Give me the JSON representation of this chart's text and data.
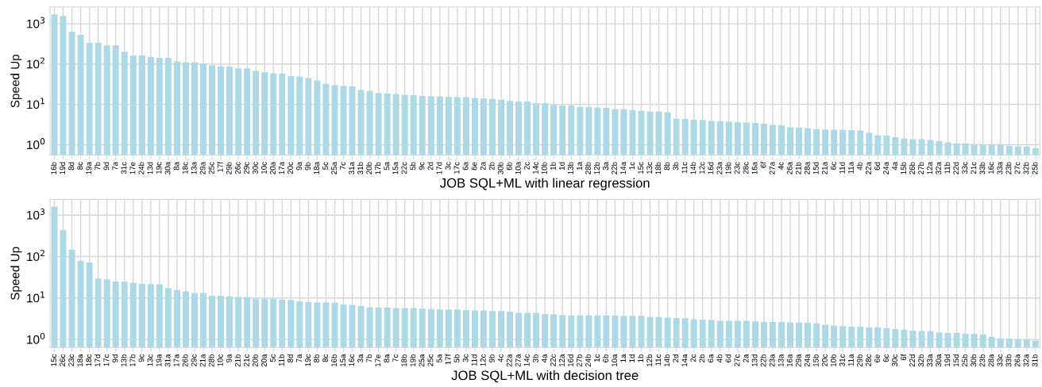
{
  "chart_data": [
    {
      "type": "bar",
      "xlabel": "JOB SQL+ML with linear regression",
      "ylabel": "Speed Up",
      "log": "y",
      "grid": true,
      "color": "#add8e6",
      "ylim": [
        0.55,
        2600
      ],
      "yticks": [
        {
          "value": 1,
          "label": "10$^{0}$"
        },
        {
          "value": 10,
          "label": "10$^{1}$"
        },
        {
          "value": 100,
          "label": "10$^{2}$"
        },
        {
          "value": 1000,
          "label": "10$^{3}$"
        }
      ],
      "categories": [
        "16b",
        "19d",
        "8d",
        "8c",
        "19a",
        "7b",
        "9d",
        "7a",
        "31c",
        "17e",
        "24b",
        "13d",
        "19c",
        "30a",
        "8a",
        "18c",
        "13a",
        "29a",
        "25c",
        "17f",
        "29b",
        "26c",
        "29c",
        "30c",
        "10c",
        "20a",
        "17a",
        "20c",
        "9a",
        "9b",
        "18a",
        "5c",
        "25a",
        "7c",
        "31a",
        "31b",
        "20b",
        "17b",
        "5a",
        "15a",
        "22c",
        "5b",
        "9c",
        "2d",
        "17d",
        "3c",
        "17c",
        "6a",
        "6e",
        "2a",
        "2b",
        "30b",
        "6b",
        "10a",
        "2c",
        "14c",
        "10b",
        "1b",
        "1d",
        "13b",
        "1a",
        "28b",
        "12b",
        "3a",
        "22b",
        "14a",
        "1c",
        "15c",
        "13c",
        "18b",
        "8b",
        "3b",
        "11c",
        "14b",
        "12c",
        "16d",
        "23a",
        "19b",
        "23c",
        "28c",
        "16a",
        "6f",
        "27a",
        "4c",
        "26a",
        "21b",
        "28a",
        "15d",
        "21a",
        "6c",
        "11d",
        "11a",
        "4b",
        "22a",
        "6d",
        "24a",
        "4a",
        "15b",
        "26b",
        "27b",
        "12a",
        "32a",
        "11b",
        "22d",
        "33c",
        "21c",
        "33b",
        "16c",
        "33a",
        "23b",
        "27c",
        "32b",
        "25b"
      ],
      "values": [
        1700,
        1550,
        630,
        530,
        336,
        336,
        290,
        290,
        200,
        162,
        162,
        150,
        142,
        142,
        116,
        111,
        111,
        103,
        93,
        87,
        86,
        78,
        78,
        68,
        63,
        59,
        58,
        50,
        49,
        45,
        39,
        32.5,
        30,
        28.5,
        28,
        22.6,
        21.7,
        19.2,
        18.6,
        18.0,
        17.3,
        17.0,
        16.3,
        15.8,
        15.8,
        15.5,
        15.1,
        15.1,
        14.4,
        13.9,
        13.7,
        13.1,
        12.2,
        11.8,
        11.8,
        10.8,
        10.6,
        9.6,
        9.4,
        9.4,
        8.7,
        8.6,
        8.3,
        8.2,
        7.6,
        7.6,
        7.2,
        6.9,
        6.7,
        6.7,
        6.3,
        4.4,
        4.35,
        4.2,
        4.1,
        3.9,
        3.85,
        3.7,
        3.6,
        3.55,
        3.46,
        3.36,
        3.1,
        3.07,
        2.7,
        2.68,
        2.56,
        2.44,
        2.4,
        2.37,
        2.33,
        2.27,
        2.23,
        1.98,
        1.7,
        1.7,
        1.53,
        1.42,
        1.37,
        1.37,
        1.31,
        1.22,
        1.15,
        1.08,
        1.08,
        1.0,
        1.0,
        1.0,
        0.99,
        0.93,
        0.91,
        0.9,
        0.82
      ]
    },
    {
      "type": "bar",
      "xlabel": "JOB SQL+ML with decision tree",
      "ylabel": "Speed Up",
      "log": "y",
      "grid": true,
      "color": "#add8e6",
      "ylim": [
        0.64,
        2400
      ],
      "yticks": [
        {
          "value": 1,
          "label": "10$^{0}$"
        },
        {
          "value": 10,
          "label": "10$^{1}$"
        },
        {
          "value": 100,
          "label": "10$^{2}$"
        },
        {
          "value": 1000,
          "label": "10$^{3}$"
        }
      ],
      "categories": [
        "15c",
        "26c",
        "23c",
        "18a",
        "18c",
        "17d",
        "17c",
        "9d",
        "13b",
        "17b",
        "9c",
        "13c",
        "19a",
        "31a",
        "17a",
        "26b",
        "29c",
        "21a",
        "28b",
        "10c",
        "9a",
        "21b",
        "21c",
        "20b",
        "20a",
        "5c",
        "11b",
        "8d",
        "7a",
        "19c",
        "8b",
        "8c",
        "16b",
        "15a",
        "16c",
        "3a",
        "7b",
        "17e",
        "8a",
        "7c",
        "18b",
        "19b",
        "25a",
        "25c",
        "5a",
        "17f",
        "5b",
        "3c",
        "11d",
        "12c",
        "9b",
        "4c",
        "22a",
        "27a",
        "14c",
        "3b",
        "4a",
        "22c",
        "12a",
        "16d",
        "27b",
        "24b",
        "1c",
        "6b",
        "10a",
        "1a",
        "1d",
        "1b",
        "12b",
        "11c",
        "14b",
        "2d",
        "14a",
        "2c",
        "2b",
        "6a",
        "4b",
        "6d",
        "27c",
        "2a",
        "13d",
        "22b",
        "23a",
        "13a",
        "16a",
        "29a",
        "24a",
        "15b",
        "20c",
        "10b",
        "31c",
        "11a",
        "29b",
        "28c",
        "6e",
        "6c",
        "30c",
        "6f",
        "22d",
        "32b",
        "33a",
        "30a",
        "19d",
        "15d",
        "25b",
        "30b",
        "23b",
        "28a",
        "33c",
        "33b",
        "26a",
        "32a",
        "31b"
      ],
      "values": [
        1600,
        430,
        145,
        79,
        72,
        29.4,
        28.1,
        25,
        24.6,
        23.5,
        21.9,
        21.6,
        21.3,
        17.3,
        15.6,
        14.4,
        13.2,
        13.2,
        11.3,
        11.3,
        10.9,
        10.6,
        10.6,
        9.7,
        9.7,
        9.6,
        9.2,
        9.0,
        8.3,
        8.0,
        7.9,
        7.9,
        7.8,
        7.0,
        6.8,
        6.4,
        6.0,
        5.9,
        5.9,
        5.7,
        5.7,
        5.7,
        5.5,
        5.4,
        5.3,
        5.3,
        5.3,
        5.1,
        5.0,
        5.0,
        4.85,
        4.85,
        4.7,
        4.4,
        4.4,
        4.4,
        4.1,
        4.0,
        3.9,
        3.8,
        3.8,
        3.8,
        3.8,
        3.8,
        3.8,
        3.7,
        3.7,
        3.7,
        3.5,
        3.5,
        3.36,
        3.3,
        3.26,
        3.07,
        2.98,
        2.94,
        2.81,
        2.81,
        2.81,
        2.81,
        2.73,
        2.65,
        2.65,
        2.65,
        2.6,
        2.57,
        2.53,
        2.46,
        2.25,
        2.15,
        2.09,
        2.03,
        2.03,
        1.97,
        1.97,
        1.89,
        1.78,
        1.73,
        1.63,
        1.6,
        1.58,
        1.47,
        1.45,
        1.45,
        1.38,
        1.36,
        1.32,
        1.16,
        1.06,
        1.05,
        1.01,
        0.99,
        0.94
      ]
    }
  ]
}
